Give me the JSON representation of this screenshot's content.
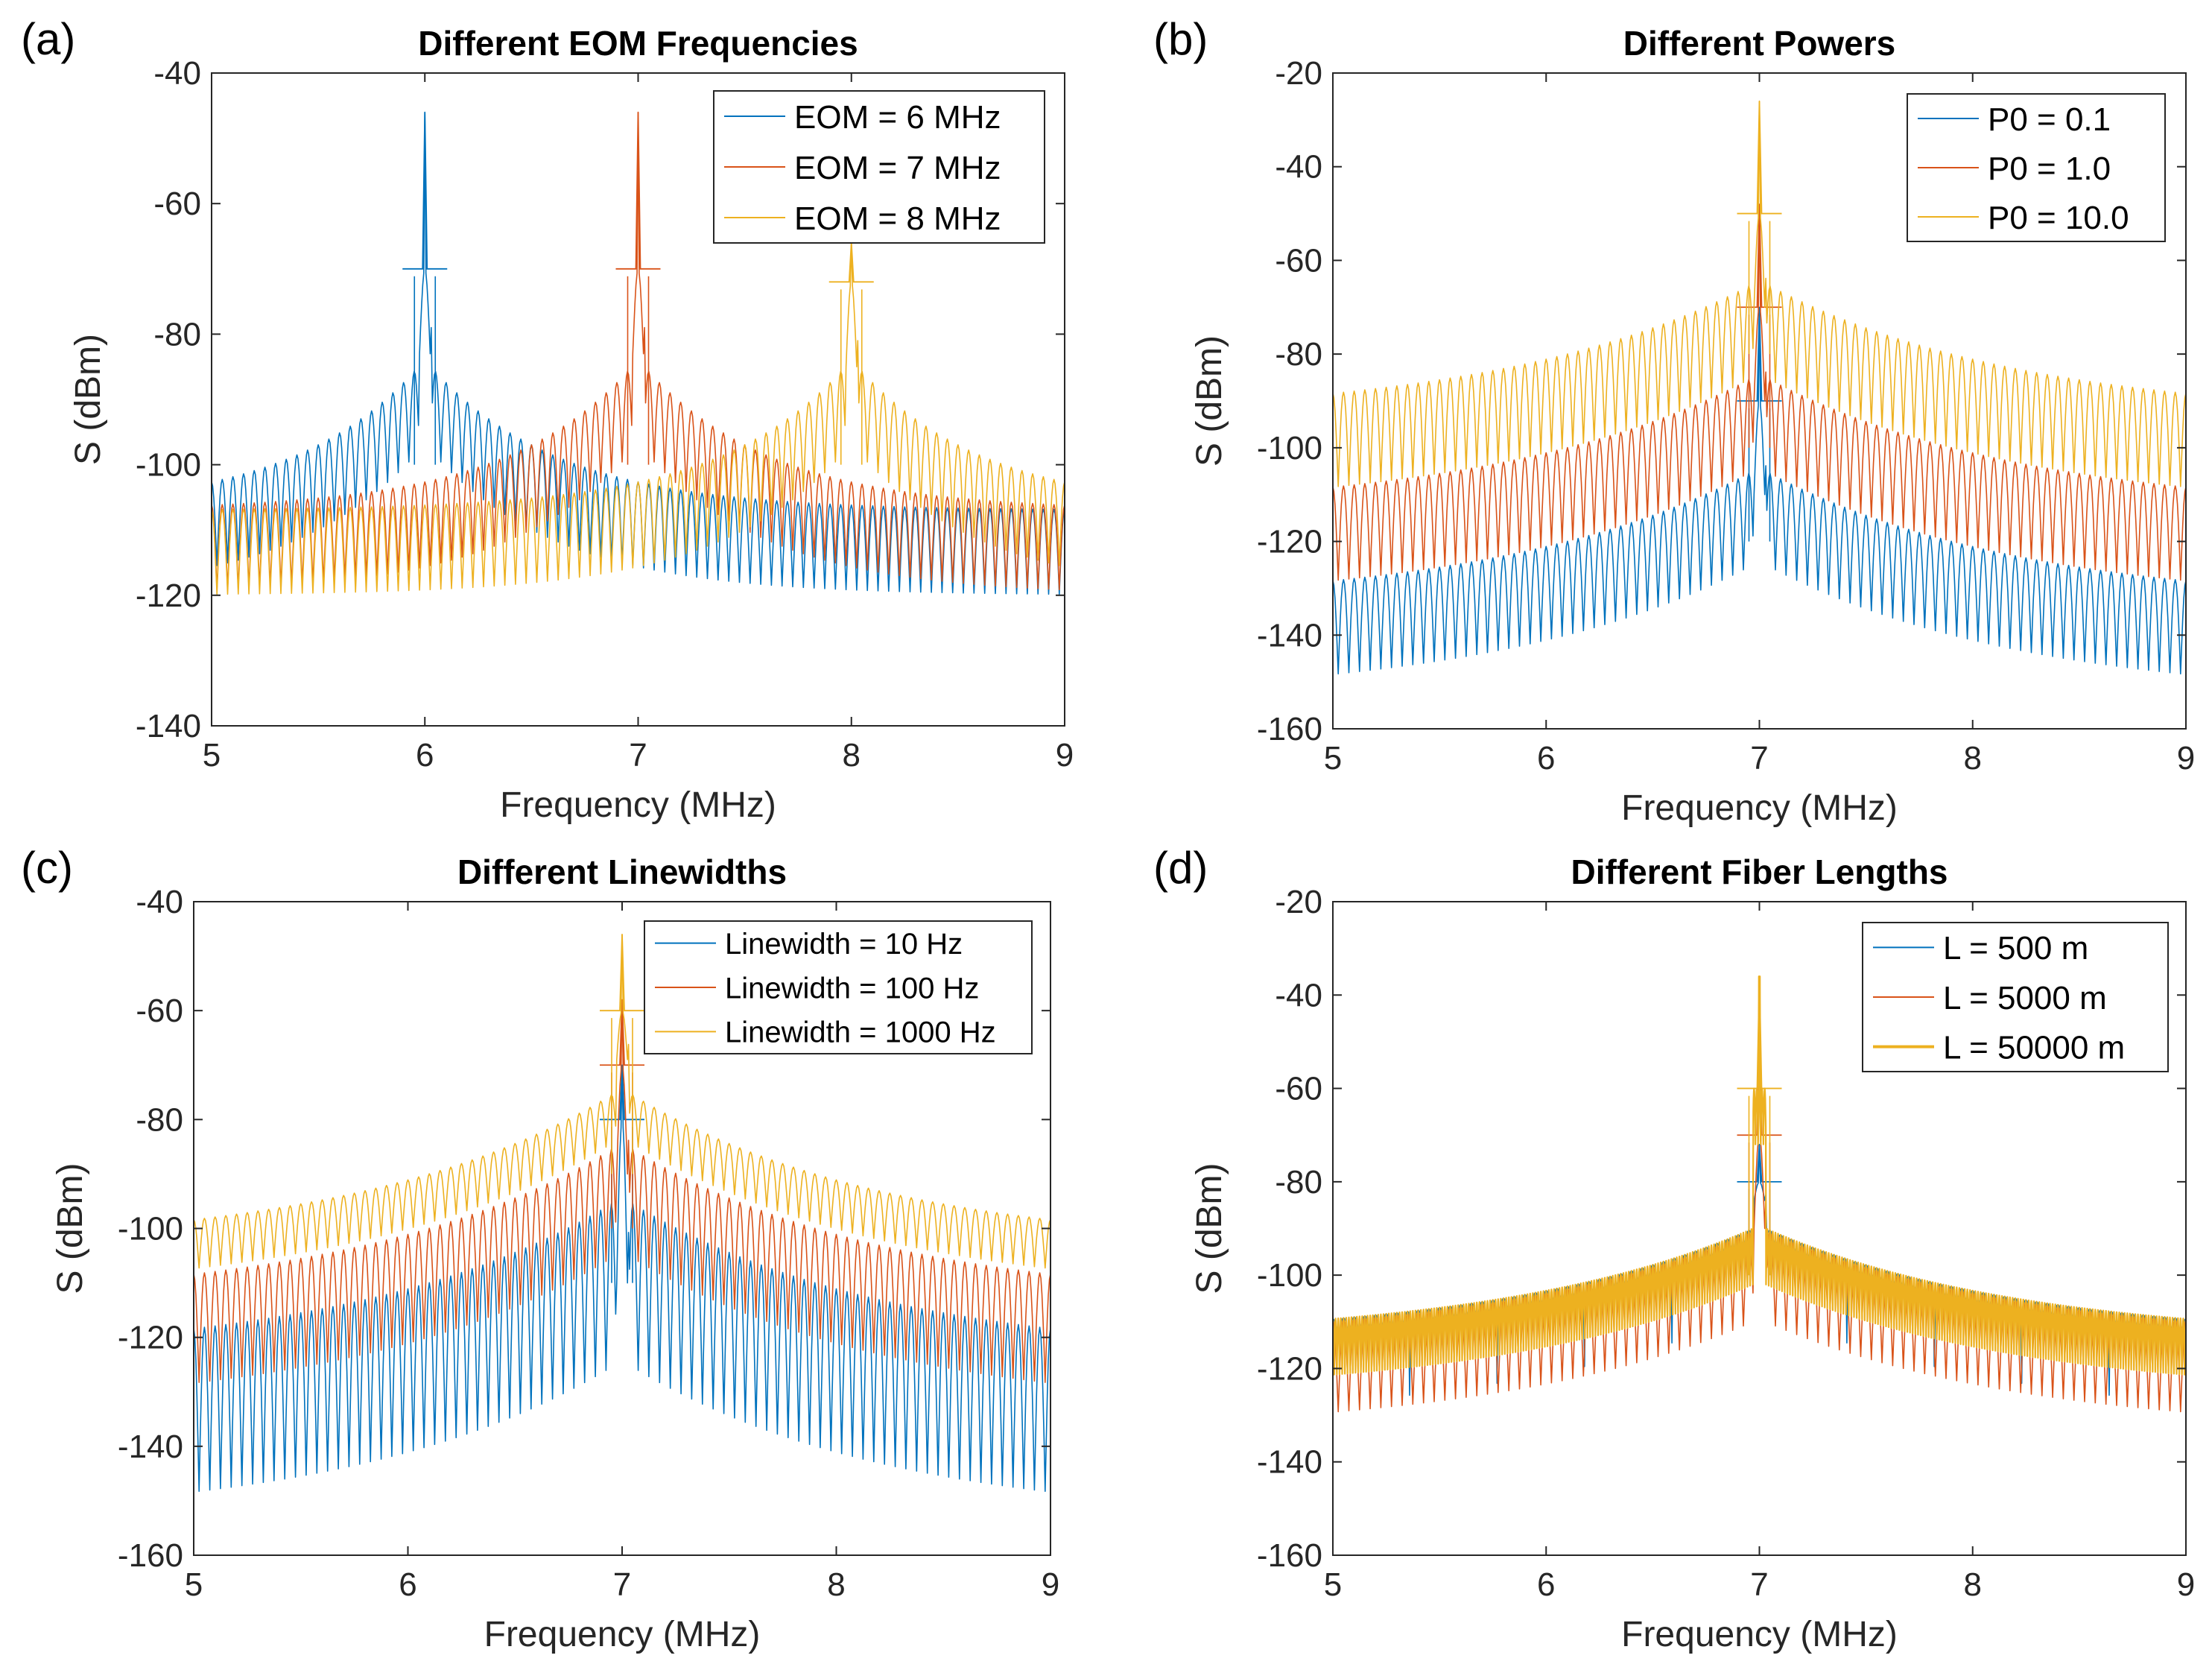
{
  "colors": {
    "blue": "#0072BD",
    "orange": "#D95319",
    "yellow": "#EDB120"
  },
  "chart_data": [
    {
      "panel": "(a)",
      "type": "line",
      "title": "Different EOM Frequencies",
      "xlabel": "Frequency (MHz)",
      "ylabel": "S (dBm)",
      "xlim": [
        5,
        9
      ],
      "ylim": [
        -140,
        -40
      ],
      "xticks": [
        5,
        6,
        7,
        8,
        9
      ],
      "yticks": [
        -140,
        -120,
        -100,
        -80,
        -60,
        -40
      ],
      "legend_position": "top-right",
      "series": [
        {
          "name": "EOM = 6 MHz",
          "color": "#0072BD",
          "center": 6,
          "peak": -46,
          "near_peak": -70,
          "env_near": -85,
          "env_far": -107,
          "depth": 13,
          "spike_floor": -100,
          "tail": 0.6
        },
        {
          "name": "EOM = 7 MHz",
          "color": "#D95319",
          "center": 7,
          "peak": -46,
          "near_peak": -70,
          "env_near": -85,
          "env_far": -107,
          "depth": 13,
          "spike_floor": -100,
          "tail": 0.6
        },
        {
          "name": "EOM = 8 MHz",
          "color": "#EDB120",
          "center": 8,
          "peak": -66,
          "near_peak": -72,
          "env_near": -85,
          "env_far": -107,
          "depth": 13,
          "spike_floor": -100,
          "tail": 0.6
        }
      ]
    },
    {
      "panel": "(b)",
      "type": "line",
      "title": "Different Powers",
      "xlabel": "Frequency (MHz)",
      "ylabel": "S (dBm)",
      "xlim": [
        5,
        9
      ],
      "ylim": [
        -160,
        -20
      ],
      "xticks": [
        5,
        6,
        7,
        8,
        9
      ],
      "yticks": [
        -160,
        -140,
        -120,
        -100,
        -80,
        -60,
        -40,
        -20
      ],
      "legend_position": "top-right",
      "series": [
        {
          "name": "P0 = 0.1",
          "color": "#0072BD",
          "center": 7,
          "peak": -70,
          "near_peak": -90,
          "env_near": -105,
          "env_far": -134,
          "depth": 20,
          "spike_floor": -120,
          "tail": 1.2
        },
        {
          "name": "P0 = 1.0",
          "color": "#D95319",
          "center": 7,
          "peak": -48,
          "near_peak": -70,
          "env_near": -85,
          "env_far": -114,
          "depth": 20,
          "spike_floor": -100,
          "tail": 1.2
        },
        {
          "name": "P0 = 10.0",
          "color": "#EDB120",
          "center": 7,
          "peak": -26,
          "near_peak": -50,
          "env_near": -65,
          "env_far": -94,
          "depth": 20,
          "spike_floor": -80,
          "tail": 1.2
        }
      ]
    },
    {
      "panel": "(c)",
      "type": "line",
      "title": "Different Linewidths",
      "xlabel": "Frequency (MHz)",
      "ylabel": "S (dBm)",
      "xlim": [
        5,
        9
      ],
      "ylim": [
        -160,
        -40
      ],
      "xticks": [
        5,
        6,
        7,
        8,
        9
      ],
      "yticks": [
        -160,
        -140,
        -120,
        -100,
        -80,
        -60,
        -40
      ],
      "legend_position": "top-right",
      "series": [
        {
          "name": "Linewidth = 10 Hz",
          "color": "#0072BD",
          "center": 7,
          "peak": -70,
          "near_peak": -80,
          "env_near": -95,
          "env_far": -124,
          "depth": 30,
          "spike_floor": -110,
          "tail": 1.2
        },
        {
          "name": "Linewidth = 100 Hz",
          "color": "#D95319",
          "center": 7,
          "peak": -58,
          "near_peak": -70,
          "env_near": -85,
          "env_far": -114,
          "depth": 20,
          "spike_floor": -100,
          "tail": 1.2
        },
        {
          "name": "Linewidth = 1000 Hz",
          "color": "#EDB120",
          "center": 7,
          "peak": -46,
          "near_peak": -60,
          "env_near": -75,
          "env_far": -104,
          "depth": 9,
          "spike_floor": -90,
          "tail": 1.2
        }
      ]
    },
    {
      "panel": "(d)",
      "type": "line",
      "title": "Different Fiber Lengths",
      "xlabel": "Frequency (MHz)",
      "ylabel": "S (dBm)",
      "xlim": [
        5,
        9
      ],
      "ylim": [
        -160,
        -20
      ],
      "xticks": [
        5,
        6,
        7,
        8,
        9
      ],
      "yticks": [
        -160,
        -140,
        -120,
        -100,
        -80,
        -60,
        -40,
        -20
      ],
      "legend_position": "top-right",
      "series": [
        {
          "name": "L = 500 m",
          "color": "#0072BD",
          "center": 7,
          "peak": -72,
          "near_peak": -80,
          "env_near": -90,
          "env_far": -114,
          "depth": 4,
          "dip_spacing": 0.41,
          "dip_depth": 18,
          "spike_floor": -100,
          "tail": 1.2
        },
        {
          "name": "L = 5000 m",
          "color": "#D95319",
          "center": 7,
          "peak": -40,
          "near_peak": -70,
          "env_near": -90,
          "env_far": -114,
          "depth": 20,
          "spike_floor": -100,
          "tail": 1.2
        },
        {
          "name": "L = 50000 m",
          "color": "#EDB120",
          "center": 7,
          "peak": -36,
          "near_peak": -60,
          "env_near": -90,
          "env_far": -114,
          "depth": 12,
          "dense": true,
          "spike_floor": -100,
          "tail": 1.2
        }
      ]
    }
  ]
}
